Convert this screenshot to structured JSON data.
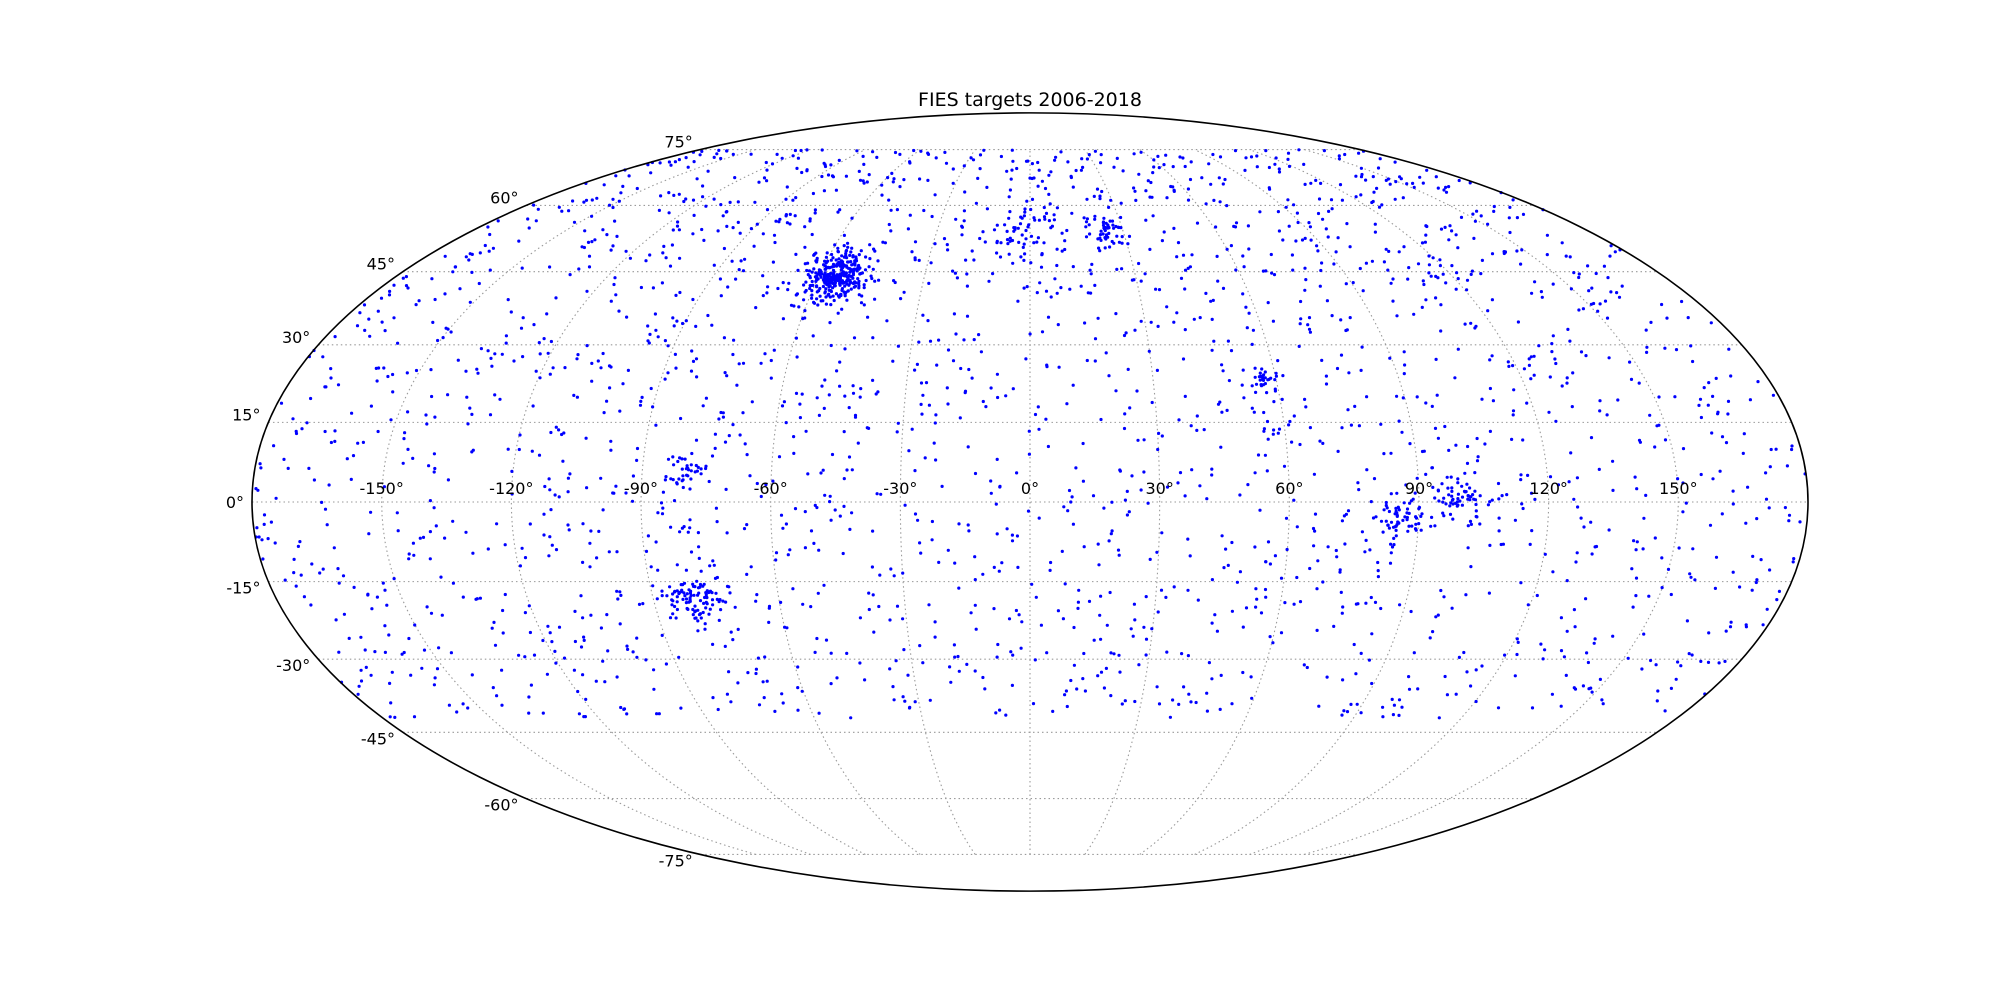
{
  "colors": {
    "points": "#0000ff",
    "grid": "#9a9a9a",
    "outline": "#000000"
  },
  "chart_data": {
    "type": "scatter",
    "projection": "mollweide",
    "title": "FIES targets 2006-2018",
    "grid": true,
    "xlim": [
      -180,
      180
    ],
    "ylim": [
      -90,
      90
    ],
    "x_ticks": [
      -150,
      -120,
      -90,
      -60,
      -30,
      0,
      30,
      60,
      90,
      120,
      150
    ],
    "y_ticks": [
      -75,
      -60,
      -45,
      -30,
      -15,
      0,
      15,
      30,
      45,
      60,
      75
    ],
    "x_tick_labels": [
      "-150°",
      "-120°",
      "-90°",
      "-60°",
      "-30°",
      "0°",
      "30°",
      "60°",
      "90°",
      "120°",
      "150°"
    ],
    "y_tick_labels": [
      "-75°",
      "-60°",
      "-45°",
      "-30°",
      "-15°",
      "0°",
      "15°",
      "30°",
      "45°",
      "60°",
      "75°"
    ],
    "series": [
      {
        "point_count_estimate": 3000,
        "clusters": [
          {
            "lon": -55,
            "lat": 44,
            "spread": 4,
            "weight": 0.11,
            "note": "dense Kepler-field block"
          },
          {
            "lon": 25,
            "lat": 54,
            "spread": 2.5,
            "weight": 0.015
          },
          {
            "lon": 57,
            "lat": 23,
            "spread": 2,
            "weight": 0.01
          },
          {
            "lon": -80,
            "lat": 6,
            "spread": 2.5,
            "weight": 0.012
          },
          {
            "lon": -80,
            "lat": -18,
            "spread": 3,
            "weight": 0.03
          },
          {
            "lon": 100,
            "lat": 1,
            "spread": 3,
            "weight": 0.02
          },
          {
            "lon": 86,
            "lat": -3,
            "spread": 3,
            "weight": 0.02
          },
          {
            "lon": -2,
            "lat": 54,
            "spread": 6,
            "weight": 0.02
          }
        ],
        "background": {
          "lat_band": [
            -40,
            82
          ],
          "density_note": "uniform scatter concentrated between -25 and +75 latitude, sparse below -30"
        }
      }
    ]
  }
}
